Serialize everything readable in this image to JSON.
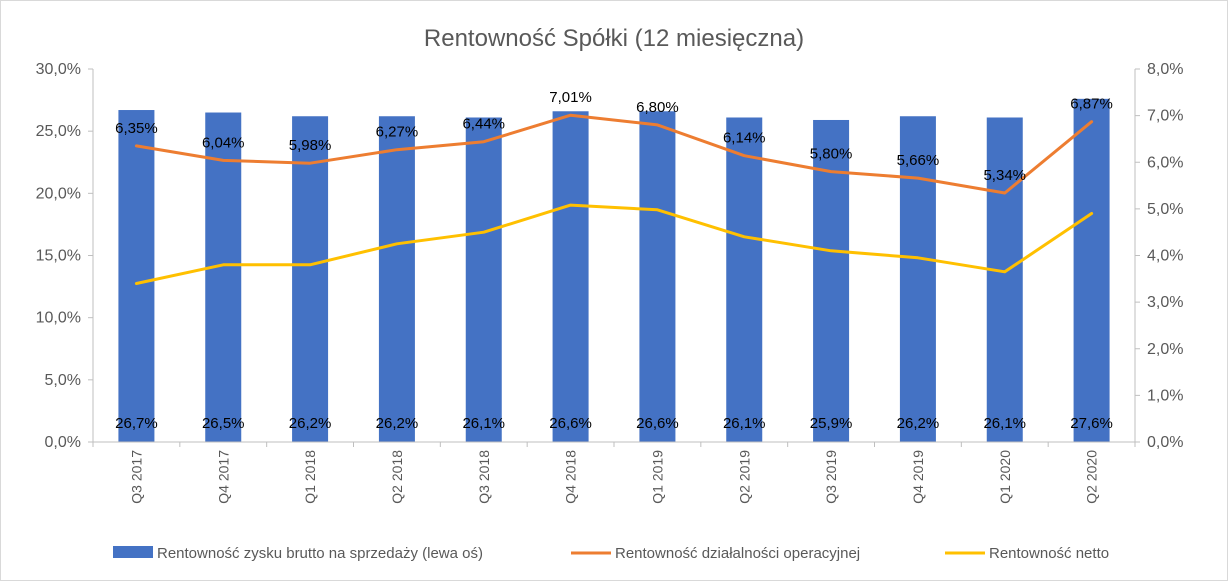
{
  "chart_data": {
    "type": "bar",
    "title": "Rentowność Spółki (12 miesięczna)",
    "categories": [
      "Q3 2017",
      "Q4 2017",
      "Q1 2018",
      "Q2 2018",
      "Q3 2018",
      "Q4 2018",
      "Q1 2019",
      "Q2 2019",
      "Q3 2019",
      "Q4 2019",
      "Q1 2020",
      "Q2 2020"
    ],
    "left_axis": {
      "ylim": [
        0,
        30
      ],
      "ticks": [
        "0,0%",
        "5,0%",
        "10,0%",
        "15,0%",
        "20,0%",
        "25,0%",
        "30,0%"
      ]
    },
    "right_axis": {
      "ylim": [
        0,
        8
      ],
      "ticks": [
        "0,0%",
        "1,0%",
        "2,0%",
        "3,0%",
        "4,0%",
        "5,0%",
        "6,0%",
        "7,0%",
        "8,0%"
      ]
    },
    "series": [
      {
        "name": "Rentowność zysku brutto na sprzedaży (lewa oś)",
        "type": "bar",
        "axis": "left",
        "color": "#4472C4",
        "values": [
          26.7,
          26.5,
          26.2,
          26.2,
          26.1,
          26.6,
          26.6,
          26.1,
          25.9,
          26.2,
          26.1,
          27.6
        ],
        "labels": [
          "26,7%",
          "26,5%",
          "26,2%",
          "26,2%",
          "26,1%",
          "26,6%",
          "26,6%",
          "26,1%",
          "25,9%",
          "26,2%",
          "26,1%",
          "27,6%"
        ]
      },
      {
        "name": "Rentowność działalności operacyjnej",
        "type": "line",
        "axis": "right",
        "color": "#ED7D31",
        "values": [
          6.35,
          6.04,
          5.98,
          6.27,
          6.44,
          7.01,
          6.8,
          6.14,
          5.8,
          5.66,
          5.34,
          6.87
        ],
        "labels": [
          "6,35%",
          "6,04%",
          "5,98%",
          "6,27%",
          "6,44%",
          "7,01%",
          "6,80%",
          "6,14%",
          "5,80%",
          "5,66%",
          "5,34%",
          "6,87%"
        ]
      },
      {
        "name": "Rentowność netto",
        "type": "line",
        "axis": "right",
        "color": "#FFC000",
        "values": [
          3.4,
          3.8,
          3.8,
          4.25,
          4.5,
          5.08,
          4.98,
          4.4,
          4.1,
          3.95,
          3.65,
          4.9
        ]
      }
    ],
    "legend_position": "bottom",
    "grid": false
  }
}
